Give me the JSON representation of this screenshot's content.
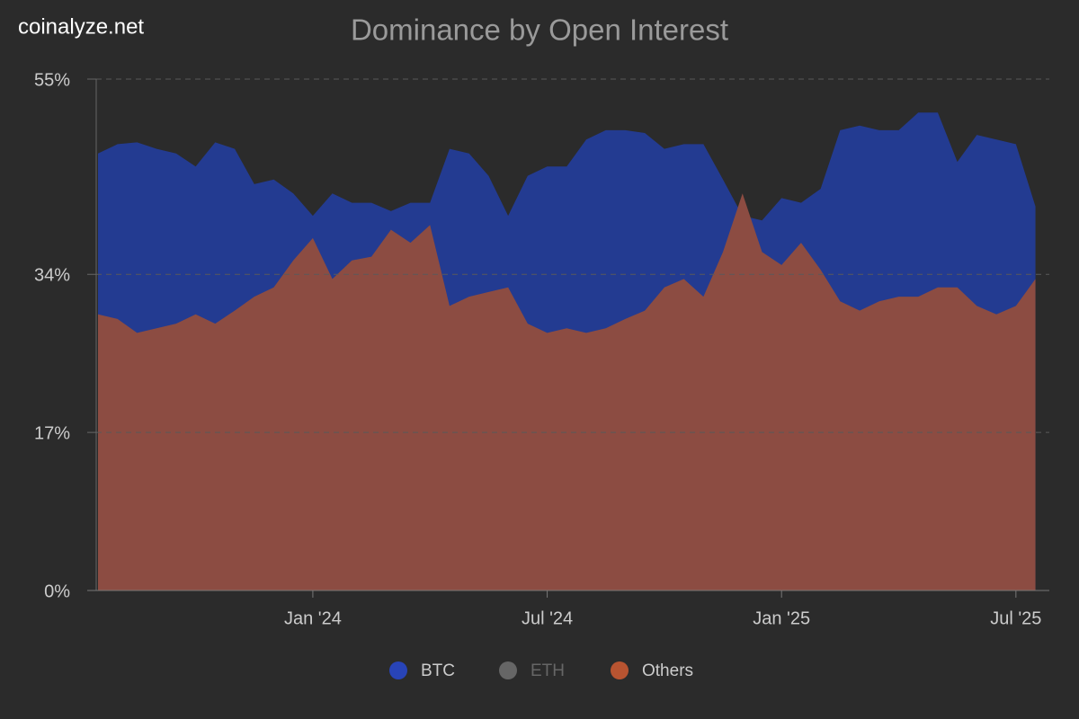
{
  "chart_data": {
    "type": "area",
    "watermark": "coinalyze.net",
    "title": "Dominance by Open Interest",
    "categories": [
      null,
      null,
      null,
      null,
      null,
      null,
      null,
      null,
      null,
      null,
      null,
      "Jan '24",
      null,
      null,
      null,
      null,
      null,
      null,
      null,
      null,
      null,
      null,
      null,
      "Jul '24",
      null,
      null,
      null,
      null,
      null,
      null,
      null,
      null,
      null,
      null,
      null,
      "Jan '25",
      null,
      null,
      null,
      null,
      null,
      null,
      null,
      null,
      null,
      null,
      null,
      "Jul '25",
      null
    ],
    "series": [
      {
        "name": "BTC",
        "color": "#233b91",
        "legend_color": "#2844b8",
        "visible": true,
        "values": [
          47,
          48,
          48.2,
          47.5,
          47,
          45.6,
          48.2,
          47.5,
          43.7,
          44.2,
          42.7,
          40.3,
          42.7,
          41.7,
          41.7,
          40.8,
          41.7,
          41.7,
          47.5,
          47,
          44.6,
          40.3,
          44.6,
          45.6,
          45.6,
          48.5,
          49.5,
          49.5,
          49.2,
          47.5,
          48,
          48,
          44.2,
          40.3,
          39.8,
          42.2,
          41.7,
          43.2,
          49.5,
          50,
          49.5,
          49.5,
          51.4,
          51.4,
          46.1,
          49,
          48.5,
          48,
          41.3
        ]
      },
      {
        "name": "ETH",
        "color": "#666666",
        "legend_color": "#666666",
        "visible": false
      },
      {
        "name": "Others",
        "color": "#8c4c42",
        "legend_color": "#b85431",
        "visible": true,
        "values": [
          29.7,
          29.2,
          27.7,
          28.2,
          28.7,
          29.7,
          28.7,
          30.1,
          31.6,
          32.6,
          35.5,
          37.9,
          33.5,
          35.5,
          35.9,
          38.8,
          37.4,
          39.3,
          30.6,
          31.6,
          32.1,
          32.6,
          28.7,
          27.7,
          28.2,
          27.7,
          28.2,
          29.2,
          30.1,
          32.6,
          33.5,
          31.6,
          36.4,
          42.7,
          36.4,
          35,
          37.4,
          34.5,
          31.1,
          30.1,
          31.1,
          31.6,
          31.6,
          32.6,
          32.6,
          30.6,
          29.7,
          30.6,
          33.5
        ]
      }
    ],
    "ylim": [
      0,
      55
    ],
    "yticks": [
      {
        "value": 0,
        "label": "0%"
      },
      {
        "value": 17,
        "label": "17%"
      },
      {
        "value": 34,
        "label": "34%"
      },
      {
        "value": 55,
        "label": "55%"
      }
    ],
    "grid": true
  }
}
